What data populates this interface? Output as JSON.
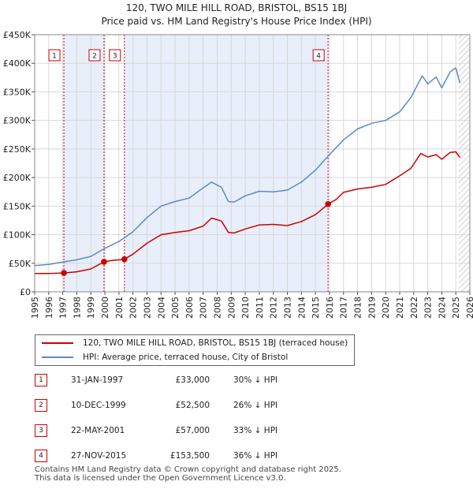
{
  "chart_data": {
    "type": "line",
    "title": "120, TWO MILE HILL ROAD, BRISTOL, BS15 1BJ",
    "subtitle": "Price paid vs. HM Land Registry's House Price Index (HPI)",
    "xlim": [
      1995,
      2026
    ],
    "ylim": [
      0,
      450000
    ],
    "xticks": [
      1995,
      1996,
      1997,
      1998,
      1999,
      2000,
      2001,
      2002,
      2003,
      2004,
      2005,
      2006,
      2007,
      2008,
      2009,
      2010,
      2011,
      2012,
      2013,
      2014,
      2015,
      2016,
      2017,
      2018,
      2019,
      2020,
      2021,
      2022,
      2023,
      2024,
      2025,
      2026
    ],
    "yticks": [
      {
        "value": 0,
        "label": "£0"
      },
      {
        "value": 50000,
        "label": "£50K"
      },
      {
        "value": 100000,
        "label": "£100K"
      },
      {
        "value": 150000,
        "label": "£150K"
      },
      {
        "value": 200000,
        "label": "£200K"
      },
      {
        "value": 250000,
        "label": "£250K"
      },
      {
        "value": 300000,
        "label": "£300K"
      },
      {
        "value": 350000,
        "label": "£350K"
      },
      {
        "value": 400000,
        "label": "£400K"
      },
      {
        "value": 450000,
        "label": "£450K"
      }
    ],
    "series": [
      {
        "name": "120, TWO MILE HILL ROAD, BRISTOL, BS15 1BJ (terraced house)",
        "color": "#cc0000",
        "x": [
          1995.0,
          1996.0,
          1997.08,
          1998.0,
          1999.0,
          1999.94,
          2000.5,
          2001.39,
          2002.0,
          2003.0,
          2004.0,
          2005.0,
          2006.0,
          2007.0,
          2007.6,
          2008.3,
          2008.8,
          2009.2,
          2010.0,
          2011.0,
          2012.0,
          2013.0,
          2014.0,
          2015.0,
          2015.9,
          2016.5,
          2017.0,
          2018.0,
          2019.0,
          2020.0,
          2021.0,
          2021.8,
          2022.5,
          2023.0,
          2023.6,
          2024.0,
          2024.6,
          2025.0,
          2025.3
        ],
        "y": [
          32000,
          32000,
          33000,
          35000,
          40000,
          52500,
          55000,
          57000,
          66000,
          85000,
          100000,
          104000,
          107000,
          115000,
          129000,
          124000,
          104000,
          103000,
          110000,
          117000,
          118000,
          116000,
          123000,
          135000,
          153500,
          162000,
          174000,
          180000,
          183000,
          188000,
          203000,
          216000,
          242000,
          236000,
          240000,
          232000,
          244000,
          245000,
          235000
        ]
      },
      {
        "name": "HPI: Average price, terraced house, City of Bristol",
        "color": "#5b8ac5",
        "x": [
          1995.0,
          1996.0,
          1997.0,
          1998.0,
          1999.0,
          2000.0,
          2001.0,
          2002.0,
          2003.0,
          2004.0,
          2005.0,
          2006.0,
          2007.0,
          2007.6,
          2008.3,
          2008.8,
          2009.2,
          2010.0,
          2011.0,
          2012.0,
          2013.0,
          2014.0,
          2015.0,
          2016.0,
          2017.0,
          2018.0,
          2019.0,
          2020.0,
          2021.0,
          2021.8,
          2022.6,
          2023.0,
          2023.6,
          2024.0,
          2024.6,
          2025.0,
          2025.3
        ],
        "y": [
          46000,
          48000,
          52000,
          56000,
          62000,
          76000,
          88000,
          105000,
          130000,
          150000,
          158000,
          164000,
          182000,
          192000,
          183000,
          158000,
          157000,
          168000,
          176000,
          175000,
          178000,
          192000,
          213000,
          240000,
          266000,
          285000,
          295000,
          300000,
          315000,
          340000,
          378000,
          364000,
          376000,
          357000,
          385000,
          392000,
          365000
        ]
      }
    ],
    "sales": [
      {
        "num": "1",
        "x": 1997.08,
        "price": 33000
      },
      {
        "num": "2",
        "x": 1999.94,
        "price": 52500
      },
      {
        "num": "3",
        "x": 2001.39,
        "price": 57000
      },
      {
        "num": "4",
        "x": 2015.9,
        "price": 153500
      }
    ],
    "shaded_spans": [
      [
        1997.08,
        1999.94
      ],
      [
        2001.39,
        2015.9
      ]
    ],
    "hatched_from": 2025.2,
    "legend": [
      {
        "label": "120, TWO MILE HILL ROAD, BRISTOL, BS15 1BJ (terraced house)",
        "color": "#cc0000"
      },
      {
        "label": "HPI: Average price, terraced house, City of Bristol",
        "color": "#5b8ac5"
      }
    ]
  },
  "transactions": [
    {
      "num": "1",
      "date": "31-JAN-1997",
      "price": "£33,000",
      "hpi": "30% ↓ HPI"
    },
    {
      "num": "2",
      "date": "10-DEC-1999",
      "price": "£52,500",
      "hpi": "26% ↓ HPI"
    },
    {
      "num": "3",
      "date": "22-MAY-2001",
      "price": "£57,000",
      "hpi": "33% ↓ HPI"
    },
    {
      "num": "4",
      "date": "27-NOV-2015",
      "price": "£153,500",
      "hpi": "36% ↓ HPI"
    }
  ],
  "footer": {
    "line1": "Contains HM Land Registry data © Crown copyright and database right 2025.",
    "line2": "This data is licensed under the Open Government Licence v3.0."
  }
}
